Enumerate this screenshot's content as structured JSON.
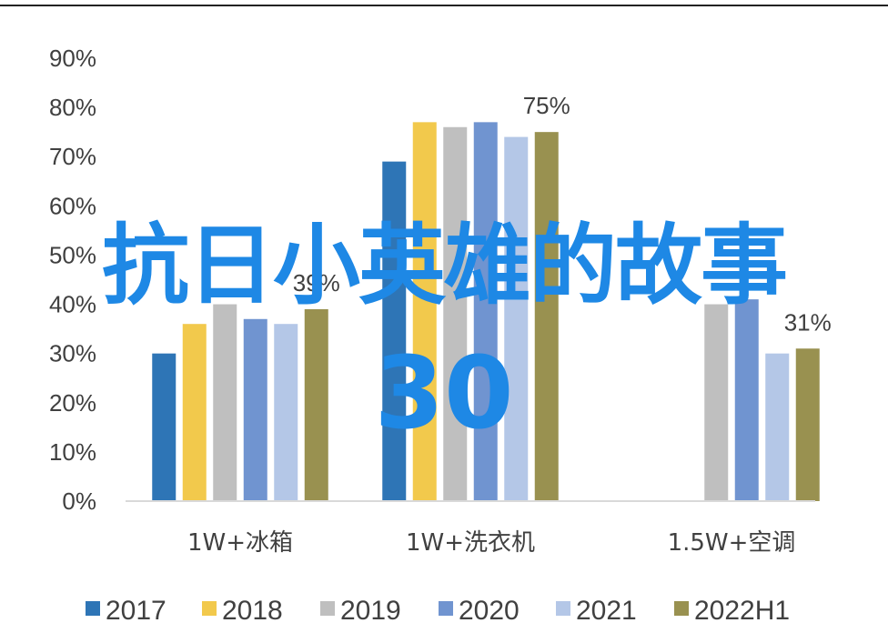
{
  "chart_data": {
    "type": "bar",
    "categories": [
      "1W+冰箱",
      "1W+洗衣机",
      "1.5W+空调"
    ],
    "series": [
      {
        "name": "2017",
        "color": "#2e75b6",
        "values": [
          30,
          69,
          null
        ]
      },
      {
        "name": "2018",
        "color": "#f2c94c",
        "values": [
          36,
          77,
          null
        ]
      },
      {
        "name": "2019",
        "color": "#bfbfbf",
        "values": [
          40,
          76,
          40
        ]
      },
      {
        "name": "2020",
        "color": "#7094d0",
        "values": [
          37,
          77,
          41
        ]
      },
      {
        "name": "2021",
        "color": "#b4c7e7",
        "values": [
          36,
          74,
          30
        ]
      },
      {
        "name": "2022H1",
        "color": "#999150",
        "values": [
          39,
          75,
          31
        ]
      }
    ],
    "data_labels": [
      {
        "category_index": 0,
        "series_index": 5,
        "text": "39%"
      },
      {
        "category_index": 1,
        "series_index": 5,
        "text": "75%"
      },
      {
        "category_index": 2,
        "series_index": 5,
        "text": "31%"
      }
    ],
    "ylim": [
      0,
      90
    ],
    "yticks": [
      "0%",
      "10%",
      "20%",
      "30%",
      "40%",
      "50%",
      "60%",
      "70%",
      "80%",
      "90%"
    ],
    "grid": false,
    "legend_position": "bottom"
  },
  "overlay": {
    "title": "抗日小英雄的故事",
    "number": "30",
    "color": "#1e88e5"
  }
}
